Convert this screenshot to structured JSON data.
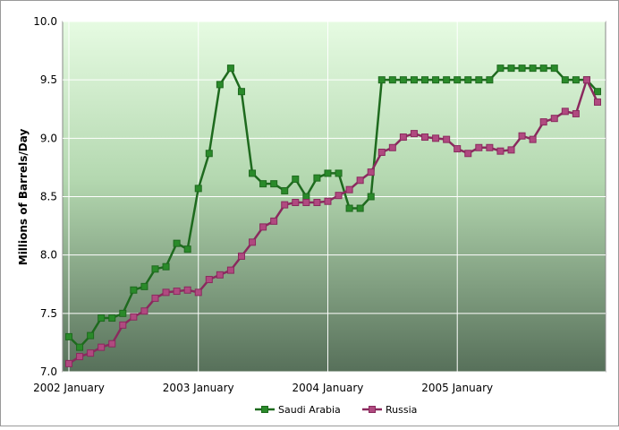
{
  "chart_data": {
    "type": "line",
    "y_label": "Millions of Barrels/Day",
    "categories": [
      "2002 January",
      null,
      null,
      null,
      null,
      null,
      null,
      null,
      null,
      null,
      null,
      null,
      "2003 January",
      null,
      null,
      null,
      null,
      null,
      null,
      null,
      null,
      null,
      null,
      null,
      "2004 January",
      null,
      null,
      null,
      null,
      null,
      null,
      null,
      null,
      null,
      null,
      null,
      "2005 January",
      null,
      null,
      null,
      null,
      null,
      null,
      null,
      null,
      null,
      null,
      null,
      null,
      null
    ],
    "series": [
      {
        "name": "Saudi Arabia",
        "color": "#1e6a1e",
        "marker_color": "#2a8a2a",
        "values": [
          7.3,
          7.21,
          7.31,
          7.46,
          7.46,
          7.5,
          7.7,
          7.73,
          7.88,
          7.9,
          8.1,
          8.05,
          8.57,
          8.87,
          9.46,
          9.6,
          9.4,
          8.7,
          8.61,
          8.61,
          8.55,
          8.65,
          8.5,
          8.66,
          8.7,
          8.7,
          8.4,
          8.4,
          8.5,
          9.5,
          9.5,
          9.5,
          9.5,
          9.5,
          9.5,
          9.5,
          9.5,
          9.5,
          9.5,
          9.5,
          9.6,
          9.6,
          9.6,
          9.6,
          9.6,
          9.6,
          9.5,
          9.5,
          9.5,
          9.4
        ]
      },
      {
        "name": "Russia",
        "color": "#8a2a5e",
        "marker_color": "#b04a80",
        "values": [
          7.07,
          7.13,
          7.16,
          7.21,
          7.24,
          7.4,
          7.47,
          7.52,
          7.63,
          7.68,
          7.69,
          7.7,
          7.68,
          7.79,
          7.83,
          7.87,
          7.99,
          8.11,
          8.24,
          8.29,
          8.43,
          8.45,
          8.45,
          8.45,
          8.46,
          8.51,
          8.56,
          8.64,
          8.71,
          8.88,
          8.92,
          9.01,
          9.04,
          9.01,
          9.0,
          8.99,
          8.91,
          8.87,
          8.92,
          8.92,
          8.89,
          8.9,
          9.02,
          8.99,
          9.14,
          9.17,
          9.23,
          9.21,
          9.5,
          9.31
        ]
      }
    ],
    "ylim": [
      7.0,
      10.0
    ],
    "yticks": [
      {
        "value": 7.0,
        "label": "7.0"
      },
      {
        "value": 7.5,
        "label": "7.5"
      },
      {
        "value": 8.0,
        "label": "8.0"
      },
      {
        "value": 8.5,
        "label": "8.5"
      },
      {
        "value": 9.0,
        "label": "9.0"
      },
      {
        "value": 9.5,
        "label": "9.5"
      },
      {
        "value": 10.0,
        "label": "10.0"
      }
    ],
    "grid": true,
    "legend": "bottom"
  }
}
